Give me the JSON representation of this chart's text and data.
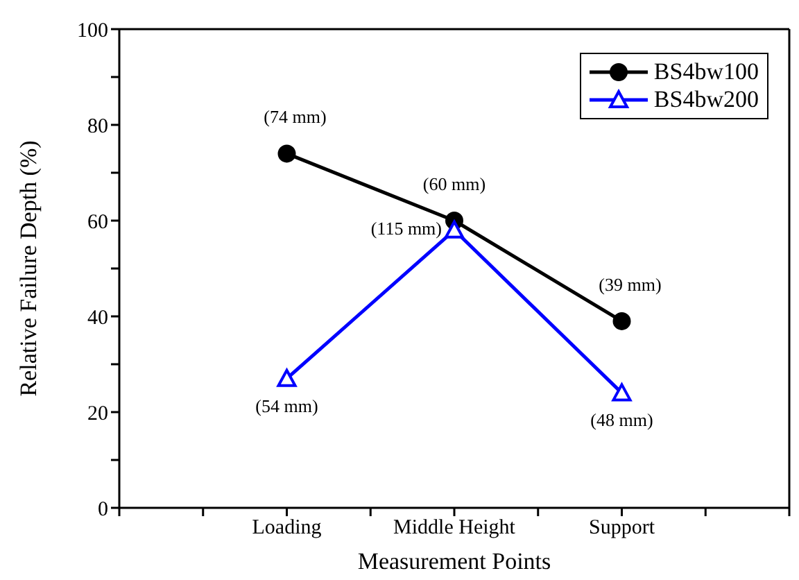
{
  "chart_data": {
    "type": "line",
    "xlabel": "Measurement Points",
    "ylabel": "Relative Failure Depth (%)",
    "categories": [
      null,
      "Loading",
      "Middle Height",
      "Support",
      null
    ],
    "series": [
      {
        "name": "BS4bw100",
        "color": "#000000",
        "marker": "circle",
        "values": [
          null,
          74,
          60,
          39,
          null
        ]
      },
      {
        "name": "BS4bw200",
        "color": "#0000ff",
        "marker": "triangle",
        "values": [
          null,
          27,
          58,
          24,
          null
        ]
      }
    ],
    "ylim": [
      0,
      100
    ],
    "yticks": [
      0,
      {
        "value": 10,
        "label": null
      },
      20,
      {
        "value": 30,
        "label": null
      },
      40,
      {
        "value": 50,
        "label": null
      },
      60,
      {
        "value": 70,
        "label": null
      },
      80,
      {
        "value": 90,
        "label": null
      },
      100
    ],
    "annotations": [
      {
        "text": "(74 mm)",
        "x": "Loading",
        "y": 74
      },
      {
        "text": "(60 mm)",
        "x": "Middle Height",
        "y": 60
      },
      {
        "text": "(39 mm)",
        "x": "Support",
        "y": 39
      },
      {
        "text": "(54 mm)",
        "x": "Loading",
        "y": 27
      },
      {
        "text": "(115 mm)",
        "x": "Middle Height",
        "y": 58
      },
      {
        "text": "(48 mm)",
        "x": "Support",
        "y": 24
      }
    ],
    "legend": "top right",
    "grid": false,
    "line_style": "solid"
  }
}
